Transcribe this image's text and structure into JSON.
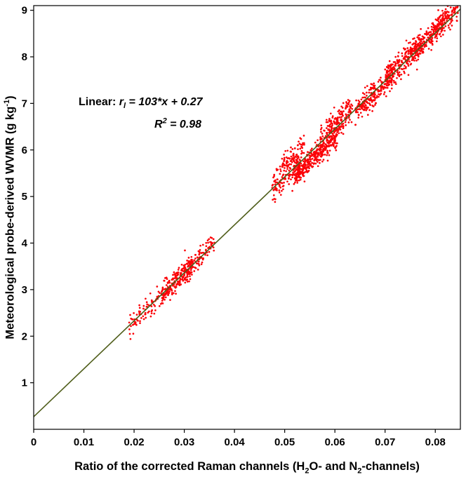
{
  "chart_data": {
    "type": "scatter",
    "title": "",
    "xlabel": "Ratio of the corrected Raman channels (H2O- and N2-channels)",
    "ylabel": "Meteorological probe-derived WVMR (g kg-1)",
    "xlabel_parts": {
      "p1": "Ratio of the corrected Raman channels (H",
      "s1": "2",
      "p2": "O- and N",
      "s2": "2",
      "p3": "-channels)"
    },
    "ylabel_parts": {
      "main": "Meteorological probe-derived WVMR (g kg",
      "sup": "-1",
      "tail": ")"
    },
    "xlim": [
      0,
      0.085
    ],
    "ylim": [
      0,
      9.1
    ],
    "x_ticks": [
      {
        "v": 0,
        "label": "0"
      },
      {
        "v": 0.01,
        "label": "0.01"
      },
      {
        "v": 0.02,
        "label": "0.02"
      },
      {
        "v": 0.03,
        "label": "0.03"
      },
      {
        "v": 0.04,
        "label": "0.04"
      },
      {
        "v": 0.05,
        "label": "0.05"
      },
      {
        "v": 0.06,
        "label": "0.06"
      },
      {
        "v": 0.07,
        "label": "0.07"
      },
      {
        "v": 0.08,
        "label": "0.08"
      }
    ],
    "y_ticks": [
      {
        "v": 1,
        "label": "1"
      },
      {
        "v": 2,
        "label": "2"
      },
      {
        "v": 3,
        "label": "3"
      },
      {
        "v": 4,
        "label": "4"
      },
      {
        "v": 5,
        "label": "5"
      },
      {
        "v": 6,
        "label": "6"
      },
      {
        "v": 7,
        "label": "7"
      },
      {
        "v": 8,
        "label": "8"
      },
      {
        "v": 9,
        "label": "9"
      }
    ],
    "fit_line": {
      "slope": 103,
      "intercept": 0.27,
      "color": "#4f5d1a",
      "width": 1.6
    },
    "annotation": {
      "prefix": "Linear:  ",
      "variable": "r",
      "variable_sub": "l",
      "equation": " = 103*x + 0.27",
      "r2_symbol": "R",
      "r2_sup": "2",
      "r2_value": " = 0.98"
    },
    "point_color": "#fb0207",
    "point_radius": 1.35,
    "axis_color": "#000000",
    "tick_label_font_size": 15,
    "random_seed": 42,
    "clusters": [
      {
        "x_min": 0.019,
        "x_max": 0.0265,
        "n": 90,
        "y_offset": -0.02,
        "y_std": 0.13
      },
      {
        "x_min": 0.0255,
        "x_max": 0.0315,
        "n": 200,
        "y_offset": 0.0,
        "y_std": 0.12
      },
      {
        "x_min": 0.03,
        "x_max": 0.036,
        "n": 120,
        "y_offset": 0.03,
        "y_std": 0.12
      },
      {
        "x_min": 0.0475,
        "x_max": 0.053,
        "n": 140,
        "y_offset": -0.02,
        "y_std": 0.15
      },
      {
        "x_min": 0.049,
        "x_max": 0.054,
        "n": 70,
        "y_offset": 0.32,
        "y_std": 0.1
      },
      {
        "x_min": 0.052,
        "x_max": 0.0605,
        "n": 380,
        "y_offset": -0.18,
        "y_std": 0.13
      },
      {
        "x_min": 0.057,
        "x_max": 0.0635,
        "n": 180,
        "y_offset": 0.08,
        "y_std": 0.15
      },
      {
        "x_min": 0.064,
        "x_max": 0.0715,
        "n": 220,
        "y_offset": -0.05,
        "y_std": 0.14
      },
      {
        "x_min": 0.07,
        "x_max": 0.0775,
        "n": 260,
        "y_offset": 0.05,
        "y_std": 0.13
      },
      {
        "x_min": 0.076,
        "x_max": 0.082,
        "n": 200,
        "y_offset": 0.05,
        "y_std": 0.13
      },
      {
        "x_min": 0.08,
        "x_max": 0.0845,
        "n": 90,
        "y_offset": 0.1,
        "y_std": 0.12
      }
    ]
  }
}
